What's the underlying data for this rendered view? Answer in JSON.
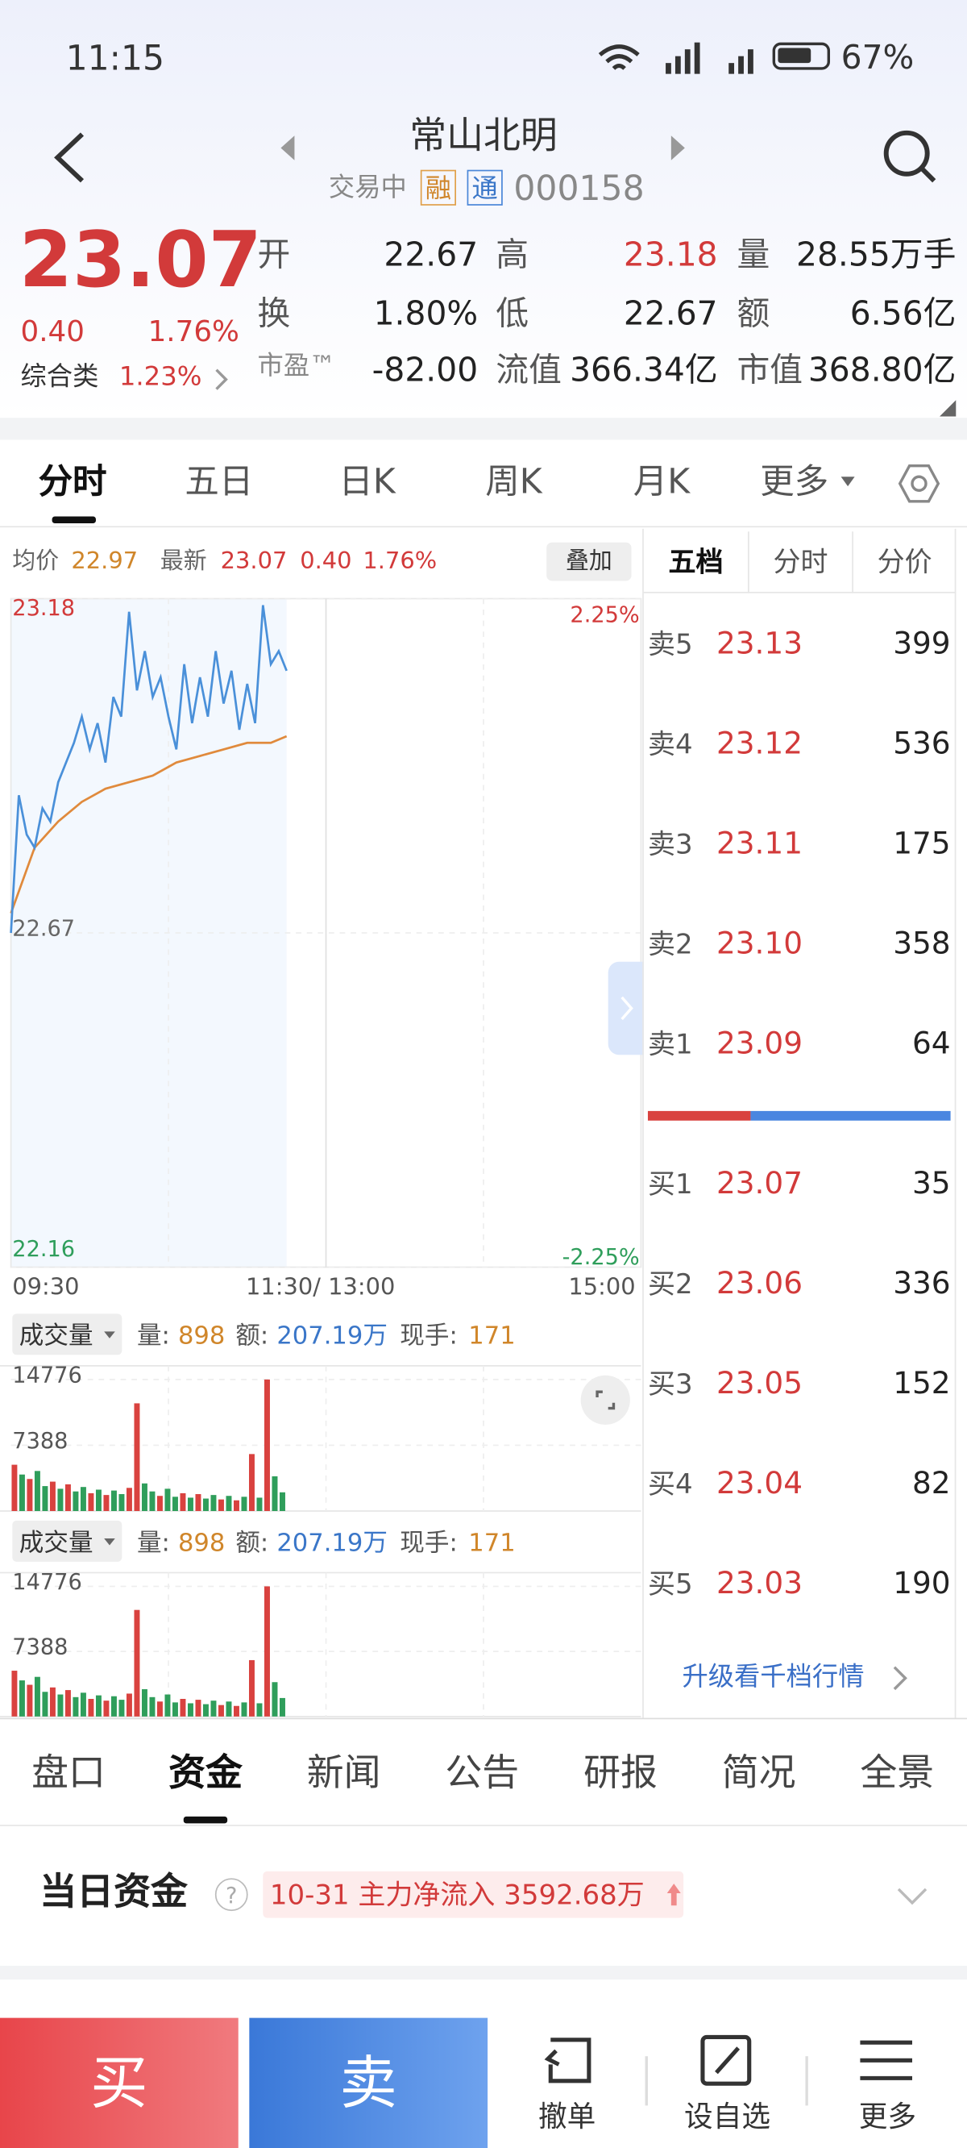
{
  "status": {
    "time": "11:15",
    "battery": "67%"
  },
  "header": {
    "title": "常山北明",
    "state": "交易中",
    "badges": [
      "融",
      "通"
    ],
    "code": "000158"
  },
  "quote": {
    "price": "23.07",
    "change": "0.40",
    "pct": "1.76%",
    "sector": "综合类",
    "sector_pct": "1.23%",
    "stats": [
      [
        {
          "label": "开",
          "value": "22.67"
        },
        {
          "label": "高",
          "value": "23.18"
        },
        {
          "label": "量",
          "value": "28.55万手"
        }
      ],
      [
        {
          "label": "换",
          "value": "1.80%"
        },
        {
          "label": "低",
          "value": "22.67"
        },
        {
          "label": "额",
          "value": "6.56亿"
        }
      ],
      [
        {
          "label": "市盈™",
          "value": "-82.00"
        },
        {
          "label": "流值",
          "value": "366.34亿"
        },
        {
          "label": "市值",
          "value": "368.80亿"
        }
      ]
    ]
  },
  "tabs": [
    "分时",
    "五日",
    "日K",
    "周K",
    "月K",
    "更多"
  ],
  "intraday": {
    "avg_label": "均价",
    "avg": "22.97",
    "last_label": "最新",
    "last": "23.07",
    "change": "0.40",
    "pct": "1.76%",
    "overlay": "叠加",
    "ylim": [
      22.16,
      23.18
    ],
    "yticks": [
      22.16,
      22.67,
      23.18
    ],
    "pct_top": "2.25%",
    "pct_bottom": "-2.25%",
    "xlim": [
      0,
      240
    ],
    "xlabels": [
      "09:30",
      "11:30/ 13:00",
      "15:00"
    ],
    "x": [
      0,
      3,
      6,
      9,
      12,
      15,
      18,
      21,
      24,
      27,
      30,
      33,
      36,
      39,
      42,
      45,
      48,
      51,
      54,
      57,
      60,
      63,
      66,
      69,
      72,
      75,
      78,
      81,
      84,
      87,
      90,
      93,
      96,
      99,
      102,
      105
    ],
    "price": [
      22.67,
      22.88,
      22.82,
      22.8,
      22.86,
      22.84,
      22.9,
      22.93,
      22.96,
      23.0,
      22.95,
      22.99,
      22.93,
      23.03,
      23.0,
      23.16,
      23.04,
      23.1,
      23.03,
      23.06,
      23.0,
      22.95,
      23.08,
      22.99,
      23.06,
      23.0,
      23.1,
      23.02,
      23.07,
      22.98,
      23.05,
      22.99,
      23.17,
      23.08,
      23.1,
      23.07
    ],
    "price_color": "#4a90d9",
    "avg_x": [
      0,
      9,
      18,
      27,
      36,
      45,
      54,
      63,
      72,
      81,
      90,
      99,
      105
    ],
    "avg_line": [
      22.7,
      22.8,
      22.84,
      22.87,
      22.89,
      22.9,
      22.91,
      22.93,
      22.94,
      22.95,
      22.96,
      22.96,
      22.97
    ],
    "avg_color": "#e08a3c"
  },
  "volume": {
    "name": "成交量",
    "qty_label": "量:",
    "qty": "898",
    "amt_label": "额:",
    "amt": "207.19万",
    "hand_label": "现手:",
    "hand": "171",
    "ylim": [
      0,
      14776
    ],
    "yticks": [
      7388,
      14776
    ],
    "values": [
      5200,
      4100,
      3600,
      4500,
      2800,
      3300,
      2500,
      3000,
      2200,
      2700,
      2000,
      2400,
      1800,
      2300,
      1900,
      2600,
      12100,
      3100,
      2200,
      1700,
      2500,
      1600,
      2000,
      1500,
      1900,
      1400,
      1800,
      1300,
      1700,
      1200,
      1600,
      6400,
      1500,
      14776,
      3900,
      2100
    ],
    "colors": [
      "#d9423f",
      "#2f9e5b",
      "#d9423f",
      "#2f9e5b",
      "#2f9e5b",
      "#d9423f",
      "#2f9e5b",
      "#d9423f",
      "#2f9e5b",
      "#2f9e5b",
      "#d9423f",
      "#2f9e5b",
      "#d9423f",
      "#2f9e5b",
      "#2f9e5b",
      "#d9423f",
      "#d9423f",
      "#2f9e5b",
      "#2f9e5b",
      "#d9423f",
      "#2f9e5b",
      "#2f9e5b",
      "#d9423f",
      "#2f9e5b",
      "#d9423f",
      "#2f9e5b",
      "#2f9e5b",
      "#d9423f",
      "#2f9e5b",
      "#d9423f",
      "#2f9e5b",
      "#d9423f",
      "#2f9e5b",
      "#d9423f",
      "#2f9e5b",
      "#2f9e5b"
    ]
  },
  "book": {
    "tabs": [
      "五档",
      "分时",
      "分价"
    ],
    "asks": [
      {
        "label": "卖5",
        "price": "23.13",
        "qty": "399"
      },
      {
        "label": "卖4",
        "price": "23.12",
        "qty": "536"
      },
      {
        "label": "卖3",
        "price": "23.11",
        "qty": "175"
      },
      {
        "label": "卖2",
        "price": "23.10",
        "qty": "358"
      },
      {
        "label": "卖1",
        "price": "23.09",
        "qty": "64"
      }
    ],
    "bids": [
      {
        "label": "买1",
        "price": "23.07",
        "qty": "35"
      },
      {
        "label": "买2",
        "price": "23.06",
        "qty": "336"
      },
      {
        "label": "买3",
        "price": "23.05",
        "qty": "152"
      },
      {
        "label": "买4",
        "price": "23.04",
        "qty": "82"
      },
      {
        "label": "买5",
        "price": "23.03",
        "qty": "190"
      }
    ],
    "upgrade": "升级看千档行情"
  },
  "info_tabs": [
    "盘口",
    "资金",
    "新闻",
    "公告",
    "研报",
    "简况",
    "全景"
  ],
  "fund": {
    "title": "当日资金",
    "note": "10-31 主力净流入 3592.68万"
  },
  "actions": {
    "buy": "买",
    "sell": "卖",
    "items": [
      "撤单",
      "设自选",
      "更多"
    ]
  }
}
